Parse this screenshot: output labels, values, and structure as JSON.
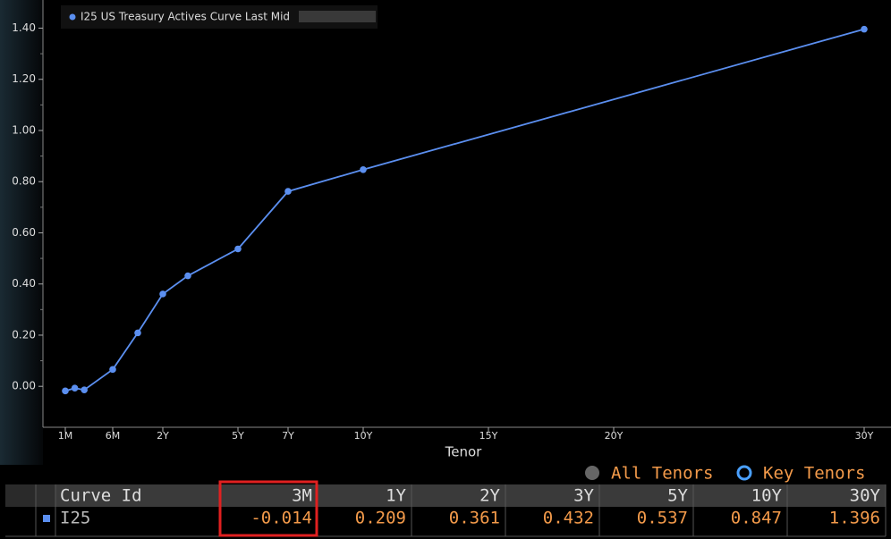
{
  "chart_data": {
    "type": "line",
    "legend": "I25 US Treasury Actives Curve Last Mid",
    "x_label": "Tenor",
    "x": [
      0.0833,
      0.1667,
      0.25,
      0.5,
      1,
      2,
      3,
      5,
      7,
      10,
      30
    ],
    "series": [
      {
        "name": "I25 US Treasury Actives Curve Last Mid",
        "color": "#5b8ff0",
        "values": [
          -0.018,
          -0.007,
          -0.014,
          0.066,
          0.209,
          0.361,
          0.432,
          0.537,
          0.762,
          0.847,
          1.396
        ]
      }
    ],
    "xlim": [
      0,
      30.5
    ],
    "xticks": [
      {
        "value": 0.0833,
        "label": "1M"
      },
      {
        "value": 0.5,
        "label": "6M"
      },
      {
        "value": 2,
        "label": "2Y"
      },
      {
        "value": 5,
        "label": "5Y"
      },
      {
        "value": 7,
        "label": "7Y"
      },
      {
        "value": 10,
        "label": "10Y"
      },
      {
        "value": 15,
        "label": "15Y"
      },
      {
        "value": 20,
        "label": "20Y"
      },
      {
        "value": 30,
        "label": "30Y"
      }
    ],
    "ylim": [
      -0.16,
      1.51
    ],
    "yticks": [
      {
        "value": 0,
        "label": "0.00"
      },
      {
        "value": 0.2,
        "label": "0.20"
      },
      {
        "value": 0.4,
        "label": "0.40"
      },
      {
        "value": 0.6,
        "label": "0.60"
      },
      {
        "value": 0.8,
        "label": "0.80"
      },
      {
        "value": 1,
        "label": "1.00"
      },
      {
        "value": 1.2,
        "label": "1.20"
      },
      {
        "value": 1.4,
        "label": "1.40"
      }
    ]
  },
  "options": [
    "All Tenors",
    "Key Tenors"
  ],
  "table": {
    "header": [
      "Curve Id",
      "3M",
      "1Y",
      "2Y",
      "3Y",
      "5Y",
      "10Y",
      "30Y"
    ],
    "rows": [
      [
        "I25",
        "-0.014",
        "0.209",
        "0.361",
        "0.432",
        "0.537",
        "0.847",
        "1.396"
      ]
    ]
  }
}
